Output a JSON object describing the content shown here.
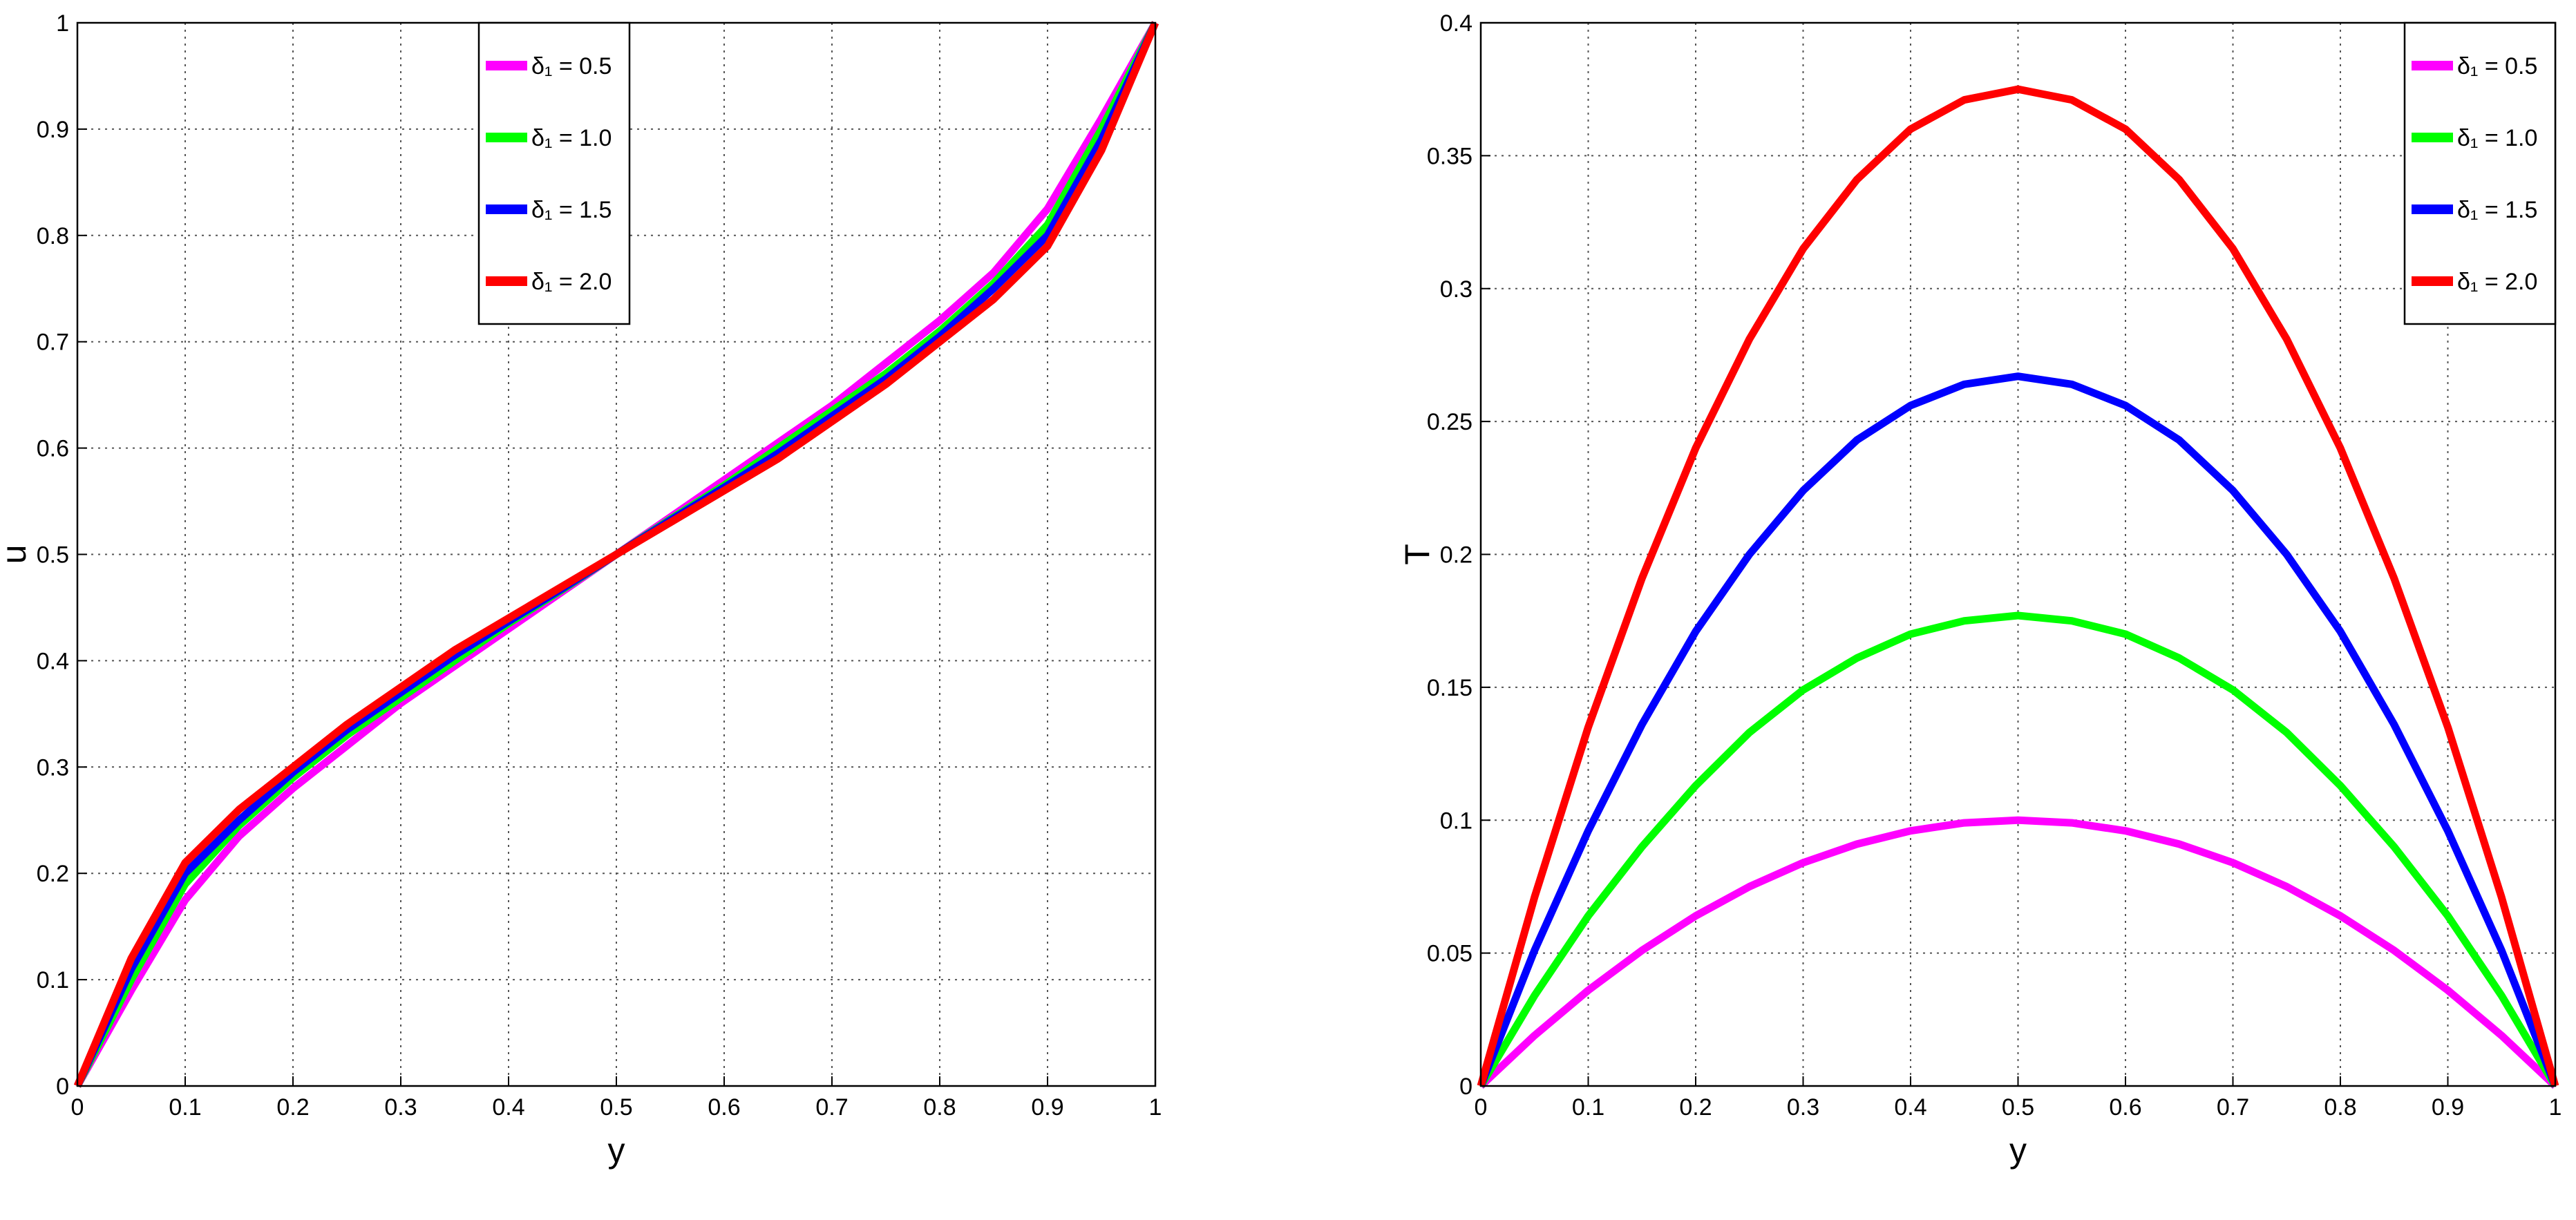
{
  "chart_data": [
    {
      "type": "line",
      "xlabel": "y",
      "ylabel": "u",
      "x": [
        0,
        0.05,
        0.1,
        0.15,
        0.2,
        0.25,
        0.3,
        0.35,
        0.4,
        0.45,
        0.5,
        0.55,
        0.6,
        0.65,
        0.7,
        0.75,
        0.8,
        0.85,
        0.9,
        0.95,
        1
      ],
      "series": [
        {
          "name": "δ₁ = 0.5",
          "color": "#ff00ff",
          "values": [
            0,
            0.09,
            0.175,
            0.235,
            0.28,
            0.32,
            0.36,
            0.395,
            0.43,
            0.465,
            0.5,
            0.535,
            0.57,
            0.605,
            0.64,
            0.68,
            0.72,
            0.765,
            0.825,
            0.91,
            1
          ]
        },
        {
          "name": "δ₁ = 1.0",
          "color": "#00ff00",
          "values": [
            0,
            0.1,
            0.19,
            0.245,
            0.29,
            0.33,
            0.365,
            0.4,
            0.435,
            0.467,
            0.5,
            0.533,
            0.565,
            0.6,
            0.635,
            0.67,
            0.71,
            0.755,
            0.81,
            0.9,
            1
          ]
        },
        {
          "name": "δ₁ = 1.5",
          "color": "#0000ff",
          "values": [
            0,
            0.11,
            0.2,
            0.25,
            0.295,
            0.335,
            0.37,
            0.405,
            0.437,
            0.468,
            0.5,
            0.532,
            0.563,
            0.595,
            0.63,
            0.665,
            0.705,
            0.75,
            0.8,
            0.89,
            1
          ]
        },
        {
          "name": "δ₁ = 2.0",
          "color": "#ff0000",
          "values": [
            0,
            0.12,
            0.21,
            0.26,
            0.3,
            0.34,
            0.375,
            0.41,
            0.44,
            0.47,
            0.5,
            0.53,
            0.56,
            0.59,
            0.625,
            0.66,
            0.7,
            0.74,
            0.79,
            0.88,
            1
          ]
        }
      ],
      "xlim": [
        0,
        1
      ],
      "xticks": [
        0,
        0.1,
        0.2,
        0.3,
        0.4,
        0.5,
        0.6,
        0.7,
        0.8,
        0.9,
        1
      ],
      "ylim": [
        0,
        1
      ],
      "yticks": [
        0,
        0.1,
        0.2,
        0.3,
        0.4,
        0.5,
        0.6,
        0.7,
        0.8,
        0.9,
        1
      ],
      "grid": true,
      "legend": "upper center"
    },
    {
      "type": "line",
      "xlabel": "y",
      "ylabel": "T",
      "x": [
        0,
        0.05,
        0.1,
        0.15,
        0.2,
        0.25,
        0.3,
        0.35,
        0.4,
        0.45,
        0.5,
        0.55,
        0.6,
        0.65,
        0.7,
        0.75,
        0.8,
        0.85,
        0.9,
        0.95,
        1
      ],
      "series": [
        {
          "name": "δ₁ = 0.5",
          "color": "#ff00ff",
          "values": [
            0,
            0.019,
            0.036,
            0.051,
            0.064,
            0.075,
            0.084,
            0.091,
            0.096,
            0.099,
            0.1,
            0.099,
            0.096,
            0.091,
            0.084,
            0.075,
            0.064,
            0.051,
            0.036,
            0.019,
            0
          ]
        },
        {
          "name": "δ₁ = 1.0",
          "color": "#00ff00",
          "values": [
            0,
            0.034,
            0.064,
            0.09,
            0.113,
            0.133,
            0.149,
            0.161,
            0.17,
            0.175,
            0.177,
            0.175,
            0.17,
            0.161,
            0.149,
            0.133,
            0.113,
            0.09,
            0.064,
            0.034,
            0
          ]
        },
        {
          "name": "δ₁ = 1.5",
          "color": "#0000ff",
          "values": [
            0,
            0.051,
            0.096,
            0.136,
            0.171,
            0.2,
            0.224,
            0.243,
            0.256,
            0.264,
            0.267,
            0.264,
            0.256,
            0.243,
            0.224,
            0.2,
            0.171,
            0.136,
            0.096,
            0.051,
            0
          ]
        },
        {
          "name": "δ₁ = 2.0",
          "color": "#ff0000",
          "values": [
            0,
            0.071,
            0.135,
            0.191,
            0.24,
            0.281,
            0.315,
            0.341,
            0.36,
            0.371,
            0.375,
            0.371,
            0.36,
            0.341,
            0.315,
            0.281,
            0.24,
            0.191,
            0.135,
            0.071,
            0
          ]
        }
      ],
      "xlim": [
        0,
        1
      ],
      "xticks": [
        0,
        0.1,
        0.2,
        0.3,
        0.4,
        0.5,
        0.6,
        0.7,
        0.8,
        0.9,
        1
      ],
      "ylim": [
        0,
        0.4
      ],
      "yticks": [
        0,
        0.05,
        0.1,
        0.15,
        0.2,
        0.25,
        0.3,
        0.35,
        0.4
      ],
      "grid": true,
      "legend": "upper right"
    }
  ]
}
